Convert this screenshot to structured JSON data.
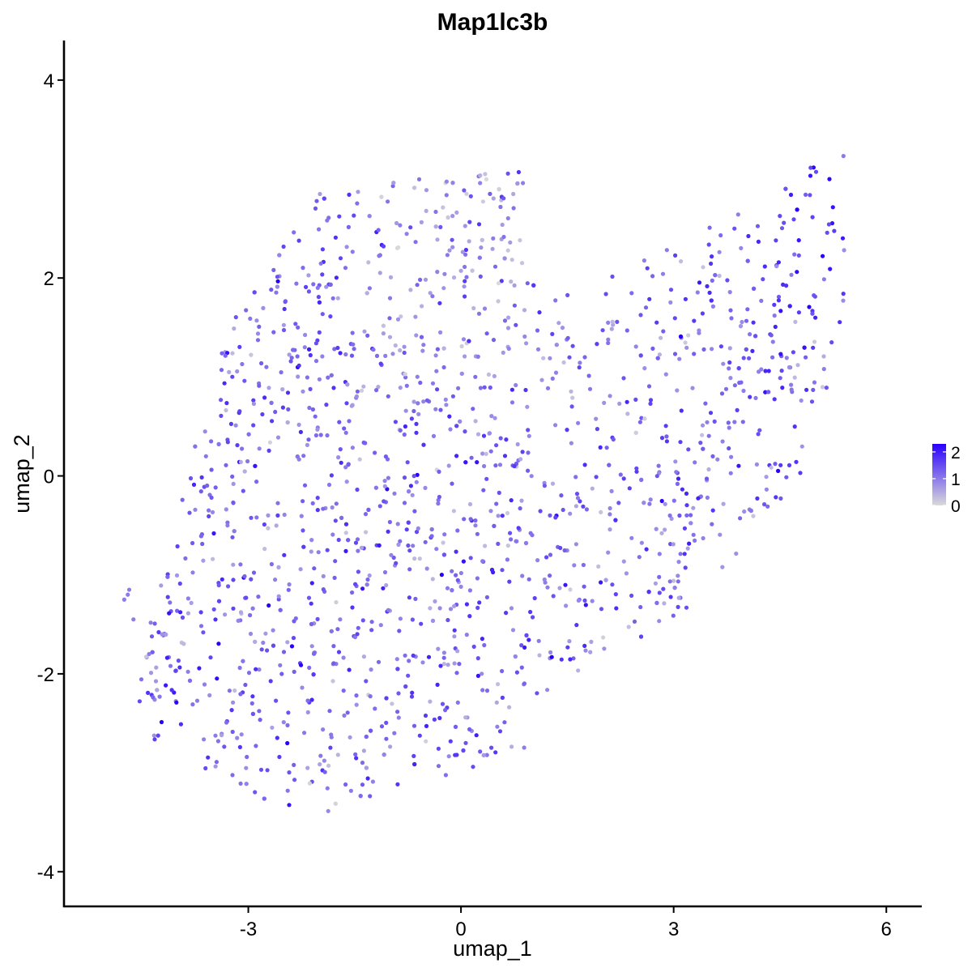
{
  "chart_data": {
    "type": "scatter",
    "title": "Map1lc3b",
    "xlabel": "umap_1",
    "ylabel": "umap_2",
    "xlim": [
      -5.6,
      6.5
    ],
    "ylim": [
      -4.35,
      4.4
    ],
    "x_ticks": [
      "-3",
      "0",
      "3",
      "6"
    ],
    "y_ticks": [
      "-4",
      "-2",
      "0",
      "2",
      "4"
    ],
    "x_tick_values": [
      -3,
      0,
      3,
      6
    ],
    "y_tick_values": [
      -4,
      -2,
      0,
      2,
      4
    ],
    "grid": false,
    "legend": {
      "position": "right",
      "type": "colorbar",
      "labels": [
        "2",
        "1",
        "0"
      ],
      "label_values": [
        2,
        1,
        0
      ],
      "min": 0,
      "max": 2.3
    },
    "colors": {
      "low": "#d9d9d9",
      "high": "#2a00ff",
      "axis": "#000000"
    },
    "point_count": 1700,
    "regions": [
      {
        "name": "left-lobe",
        "x_range": [
          -4.6,
          0.9
        ],
        "y_range": [
          -3.5,
          3.2
        ],
        "typical_value": 1.2
      },
      {
        "name": "right-arm",
        "x_range": [
          1.0,
          5.4
        ],
        "y_range": [
          -2.3,
          3.1
        ],
        "typical_value": 1.4
      },
      {
        "name": "upper-right-cluster",
        "x_range": [
          4.2,
          5.4
        ],
        "y_range": [
          1.8,
          3.1
        ],
        "typical_value": 2.0
      }
    ]
  }
}
